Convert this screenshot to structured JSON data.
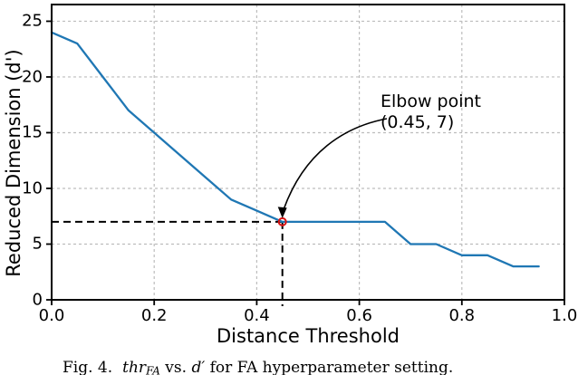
{
  "chart_data": {
    "type": "line",
    "title": "",
    "xlabel": "Distance Threshold",
    "ylabel": "Reduced Dimension (d')",
    "xlim": [
      0.0,
      1.0
    ],
    "ylim": [
      0,
      26.5
    ],
    "grid": true,
    "xticks": [
      {
        "value": 0.0,
        "label": "0.0"
      },
      {
        "value": 0.2,
        "label": "0.2"
      },
      {
        "value": 0.4,
        "label": "0.4"
      },
      {
        "value": 0.6,
        "label": "0.6"
      },
      {
        "value": 0.8,
        "label": "0.8"
      },
      {
        "value": 1.0,
        "label": "1.0"
      }
    ],
    "yticks": [
      {
        "value": 0,
        "label": "0"
      },
      {
        "value": 5,
        "label": "5"
      },
      {
        "value": 10,
        "label": "10"
      },
      {
        "value": 15,
        "label": "15"
      },
      {
        "value": 20,
        "label": "20"
      },
      {
        "value": 25,
        "label": "25"
      }
    ],
    "series": [
      {
        "name": "reduced-dimension-vs-threshold",
        "color": "#1f77b4",
        "x": [
          0.0,
          0.05,
          0.1,
          0.15,
          0.2,
          0.25,
          0.3,
          0.35,
          0.4,
          0.45,
          0.5,
          0.55,
          0.6,
          0.65,
          0.7,
          0.75,
          0.8,
          0.85,
          0.9,
          0.95
        ],
        "y": [
          24,
          23,
          20,
          17,
          15,
          13,
          11,
          9,
          8,
          7,
          7,
          7,
          7,
          7,
          5,
          5,
          4,
          4,
          3,
          3
        ]
      }
    ],
    "annotation": {
      "line1": "Elbow point",
      "line2": "(0.45, 7)",
      "point_x": 0.45,
      "point_y": 7,
      "marker_color": "#dc1414"
    },
    "colors": {
      "grid": "#bdbdbd",
      "spine": "#000000",
      "guide": "#000000"
    }
  },
  "figure": {
    "caption_parts": [
      {
        "text": "Fig. 4.",
        "style": "roman",
        "gap": true
      },
      {
        "text": "thr",
        "style": "italic",
        "gap": false
      },
      {
        "text": "FA",
        "style": "subscript",
        "gap": false
      },
      {
        "text": " vs. ",
        "style": "roman",
        "gap": false
      },
      {
        "text": "d′",
        "style": "italic",
        "gap": false
      },
      {
        "text": " for FA hyperparameter setting.",
        "style": "roman",
        "gap": false
      }
    ]
  }
}
